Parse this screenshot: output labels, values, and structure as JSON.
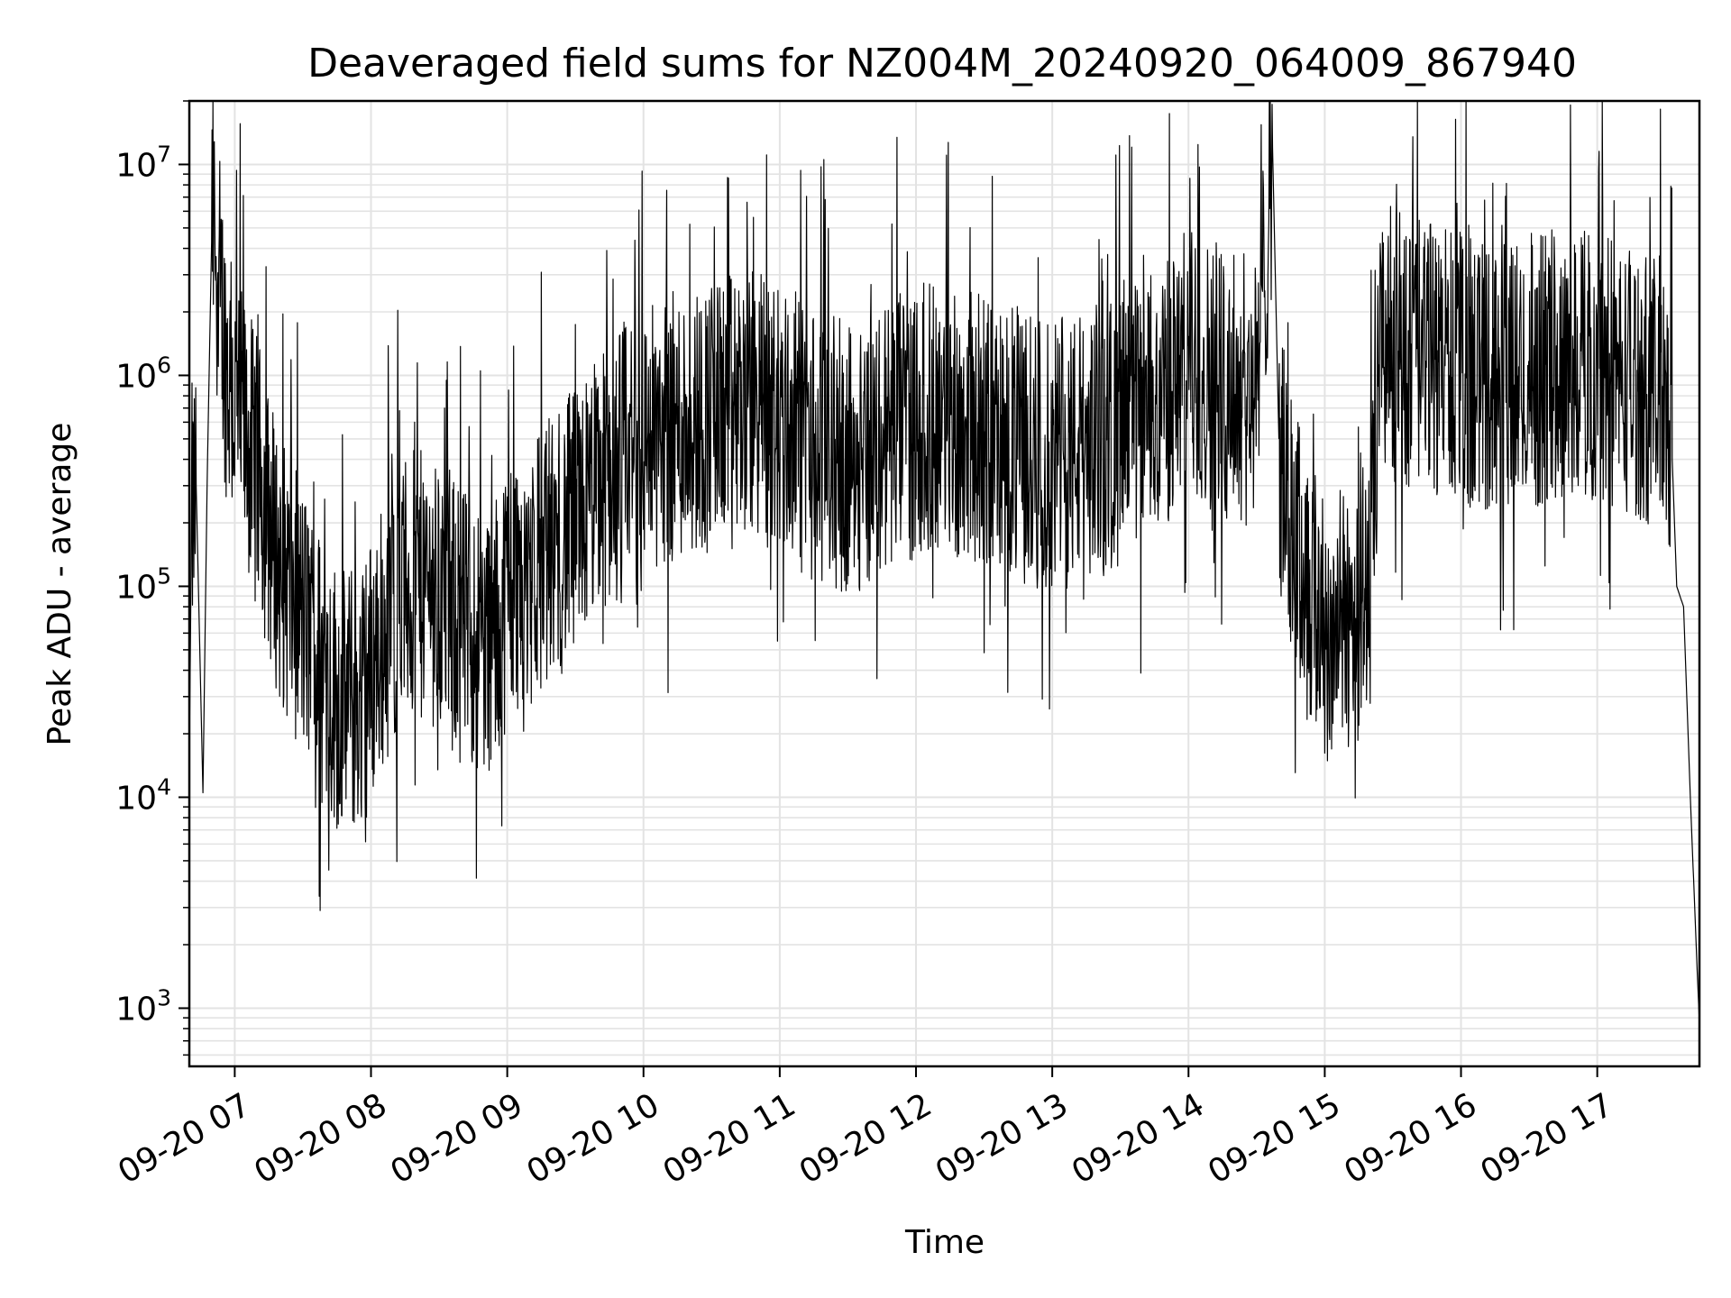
{
  "chart_data": {
    "type": "line",
    "title": "Deaveraged field sums for NZ004M_20240920_064009_867940",
    "xlabel": "Time",
    "ylabel": "Peak ADU - average",
    "yscale": "log",
    "ylim": [
      530,
      20000000
    ],
    "xlim": [
      "2024-09-20 06:40",
      "2024-09-20 17:45"
    ],
    "grid": true,
    "line_color": "#000000",
    "grid_color": "#e3e3e3",
    "x_ticks": [
      {
        "t": "2024-09-20 07:00",
        "label": "09-20 07"
      },
      {
        "t": "2024-09-20 08:00",
        "label": "09-20 08"
      },
      {
        "t": "2024-09-20 09:00",
        "label": "09-20 09"
      },
      {
        "t": "2024-09-20 10:00",
        "label": "09-20 10"
      },
      {
        "t": "2024-09-20 11:00",
        "label": "09-20 11"
      },
      {
        "t": "2024-09-20 12:00",
        "label": "09-20 12"
      },
      {
        "t": "2024-09-20 13:00",
        "label": "09-20 13"
      },
      {
        "t": "2024-09-20 14:00",
        "label": "09-20 14"
      },
      {
        "t": "2024-09-20 15:00",
        "label": "09-20 15"
      },
      {
        "t": "2024-09-20 16:00",
        "label": "09-20 16"
      },
      {
        "t": "2024-09-20 17:00",
        "label": "09-20 17"
      }
    ],
    "y_ticks": [
      {
        "value": 1000,
        "base": "10",
        "exp": "3"
      },
      {
        "value": 10000,
        "base": "10",
        "exp": "4"
      },
      {
        "value": 100000,
        "base": "10",
        "exp": "5"
      },
      {
        "value": 1000000,
        "base": "10",
        "exp": "6"
      },
      {
        "value": 10000000,
        "base": "10",
        "exp": "7"
      }
    ],
    "series": [
      {
        "points": [
          [
            "2024-09-20 06:40",
            16000
          ],
          [
            "2024-09-20 06:41",
            200000
          ],
          [
            "2024-09-20 06:43",
            300000
          ],
          [
            "2024-09-20 06:46",
            10500
          ],
          [
            "2024-09-20 06:48",
            400000
          ],
          [
            "2024-09-20 06:50",
            5600000
          ],
          [
            "2024-09-20 06:53",
            3000000
          ],
          [
            "2024-09-20 06:56",
            1200000
          ],
          [
            "2024-09-20 07:00",
            700000
          ],
          [
            "2024-09-20 07:05",
            500000
          ],
          [
            "2024-09-20 07:10",
            350000
          ],
          [
            "2024-09-20 07:15",
            200000
          ],
          [
            "2024-09-20 07:20",
            120000
          ],
          [
            "2024-09-20 07:25",
            90000
          ],
          [
            "2024-09-20 07:30",
            70000
          ],
          [
            "2024-09-20 07:35",
            50000
          ],
          [
            "2024-09-20 07:40",
            38000
          ],
          [
            "2024-09-20 07:45",
            30000
          ],
          [
            "2024-09-20 07:50",
            28000
          ],
          [
            "2024-09-20 07:55",
            30000
          ],
          [
            "2024-09-20 08:00",
            40000
          ],
          [
            "2024-09-20 08:05",
            60000
          ],
          [
            "2024-09-20 08:10",
            80000
          ],
          [
            "2024-09-20 08:15",
            95000
          ],
          [
            "2024-09-20 08:20",
            100000
          ],
          [
            "2024-09-20 08:25",
            100000
          ],
          [
            "2024-09-20 08:30",
            90000
          ],
          [
            "2024-09-20 08:35",
            80000
          ],
          [
            "2024-09-20 08:40",
            70000
          ],
          [
            "2024-09-20 08:45",
            60000
          ],
          [
            "2024-09-20 08:50",
            55000
          ],
          [
            "2024-09-20 08:55",
            60000
          ],
          [
            "2024-09-20 09:00",
            100000
          ],
          [
            "2024-09-20 09:10",
            120000
          ],
          [
            "2024-09-20 09:20",
            150000
          ],
          [
            "2024-09-20 09:30",
            200000
          ],
          [
            "2024-09-20 09:40",
            300000
          ],
          [
            "2024-09-20 09:50",
            400000
          ],
          [
            "2024-09-20 10:00",
            500000
          ],
          [
            "2024-09-20 10:10",
            550000
          ],
          [
            "2024-09-20 10:20",
            600000
          ],
          [
            "2024-09-20 10:30",
            650000
          ],
          [
            "2024-09-20 10:40",
            700000
          ],
          [
            "2024-09-20 10:50",
            750000
          ],
          [
            "2024-09-20 11:00",
            650000
          ],
          [
            "2024-09-20 11:10",
            500000
          ],
          [
            "2024-09-20 11:20",
            450000
          ],
          [
            "2024-09-20 11:30",
            400000
          ],
          [
            "2024-09-20 11:40",
            450000
          ],
          [
            "2024-09-20 11:50",
            550000
          ],
          [
            "2024-09-20 12:00",
            600000
          ],
          [
            "2024-09-20 12:10",
            650000
          ],
          [
            "2024-09-20 12:20",
            600000
          ],
          [
            "2024-09-20 12:30",
            550000
          ],
          [
            "2024-09-20 12:40",
            500000
          ],
          [
            "2024-09-20 12:50",
            450000
          ],
          [
            "2024-09-20 13:00",
            400000
          ],
          [
            "2024-09-20 13:10",
            450000
          ],
          [
            "2024-09-20 13:20",
            500000
          ],
          [
            "2024-09-20 13:30",
            550000
          ],
          [
            "2024-09-20 13:40",
            650000
          ],
          [
            "2024-09-20 13:50",
            800000
          ],
          [
            "2024-09-20 14:00",
            1200000
          ],
          [
            "2024-09-20 14:10",
            1000000
          ],
          [
            "2024-09-20 14:20",
            900000
          ],
          [
            "2024-09-20 14:30",
            800000
          ],
          [
            "2024-09-20 14:37",
            12000000
          ],
          [
            "2024-09-20 14:40",
            400000
          ],
          [
            "2024-09-20 14:45",
            200000
          ],
          [
            "2024-09-20 14:50",
            120000
          ],
          [
            "2024-09-20 15:00",
            60000
          ],
          [
            "2024-09-20 15:10",
            70000
          ],
          [
            "2024-09-20 15:20",
            100000
          ],
          [
            "2024-09-20 15:25",
            1500000
          ],
          [
            "2024-09-20 15:30",
            1400000
          ],
          [
            "2024-09-20 15:40",
            1300000
          ],
          [
            "2024-09-20 15:50",
            1200000
          ],
          [
            "2024-09-20 16:00",
            1100000
          ],
          [
            "2024-09-20 16:10",
            1000000
          ],
          [
            "2024-09-20 16:20",
            950000
          ],
          [
            "2024-09-20 16:30",
            1000000
          ],
          [
            "2024-09-20 16:40",
            1100000
          ],
          [
            "2024-09-20 16:50",
            1200000
          ],
          [
            "2024-09-20 17:00",
            1100000
          ],
          [
            "2024-09-20 17:10",
            1000000
          ],
          [
            "2024-09-20 17:20",
            900000
          ],
          [
            "2024-09-20 17:30",
            800000
          ],
          [
            "2024-09-20 17:33",
            400000
          ],
          [
            "2024-09-20 17:35",
            100000
          ],
          [
            "2024-09-20 17:38",
            80000
          ],
          [
            "2024-09-20 17:41",
            10000
          ],
          [
            "2024-09-20 17:44",
            1500
          ],
          [
            "2024-09-20 17:45",
            850
          ]
        ]
      }
    ]
  }
}
